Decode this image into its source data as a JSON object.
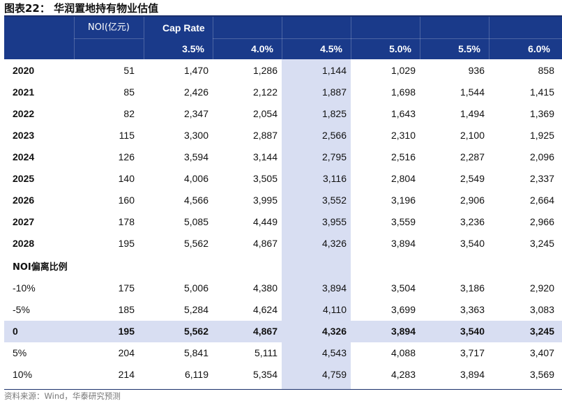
{
  "title": "图表22：  华润置地持有物业估值",
  "header": {
    "noi_label": "NOI(亿元)",
    "cap_rate_label": "Cap Rate",
    "rates": [
      "3.5%",
      "4.0%",
      "4.5%",
      "5.0%",
      "5.5%",
      "6.0%"
    ]
  },
  "year_rows": [
    {
      "label": "2020",
      "noi": "51",
      "values": [
        "1,470",
        "1,286",
        "1,144",
        "1,029",
        "936",
        "858"
      ]
    },
    {
      "label": "2021",
      "noi": "85",
      "values": [
        "2,426",
        "2,122",
        "1,887",
        "1,698",
        "1,544",
        "1,415"
      ]
    },
    {
      "label": "2022",
      "noi": "82",
      "values": [
        "2,347",
        "2,054",
        "1,825",
        "1,643",
        "1,494",
        "1,369"
      ]
    },
    {
      "label": "2023",
      "noi": "115",
      "values": [
        "3,300",
        "2,887",
        "2,566",
        "2,310",
        "2,100",
        "1,925"
      ]
    },
    {
      "label": "2024",
      "noi": "126",
      "values": [
        "3,594",
        "3,144",
        "2,795",
        "2,516",
        "2,287",
        "2,096"
      ]
    },
    {
      "label": "2025",
      "noi": "140",
      "values": [
        "4,006",
        "3,505",
        "3,116",
        "2,804",
        "2,549",
        "2,337"
      ]
    },
    {
      "label": "2026",
      "noi": "160",
      "values": [
        "4,566",
        "3,995",
        "3,552",
        "3,196",
        "2,906",
        "2,664"
      ]
    },
    {
      "label": "2027",
      "noi": "178",
      "values": [
        "5,085",
        "4,449",
        "3,955",
        "3,559",
        "3,236",
        "2,966"
      ]
    },
    {
      "label": "2028",
      "noi": "195",
      "values": [
        "5,562",
        "4,867",
        "4,326",
        "3,894",
        "3,540",
        "3,245"
      ]
    }
  ],
  "deviation_section_label": "NOI偏离比例",
  "deviation_rows": [
    {
      "label": "-10%",
      "noi": "175",
      "values": [
        "5,006",
        "4,380",
        "3,894",
        "3,504",
        "3,186",
        "2,920"
      ]
    },
    {
      "label": "-5%",
      "noi": "185",
      "values": [
        "5,284",
        "4,624",
        "4,110",
        "3,699",
        "3,363",
        "3,083"
      ]
    },
    {
      "label": "0",
      "noi": "195",
      "values": [
        "5,562",
        "4,867",
        "4,326",
        "3,894",
        "3,540",
        "3,245"
      ]
    },
    {
      "label": "5%",
      "noi": "204",
      "values": [
        "5,841",
        "5,111",
        "4,543",
        "4,088",
        "3,717",
        "3,407"
      ]
    },
    {
      "label": "10%",
      "noi": "214",
      "values": [
        "6,119",
        "5,354",
        "4,759",
        "4,283",
        "3,894",
        "3,569"
      ]
    }
  ],
  "source": "资料来源：Wind，华泰研究预测",
  "colors": {
    "header_bg": "#1a3a8a",
    "highlight": "#d8def2",
    "source_text": "#777777"
  }
}
